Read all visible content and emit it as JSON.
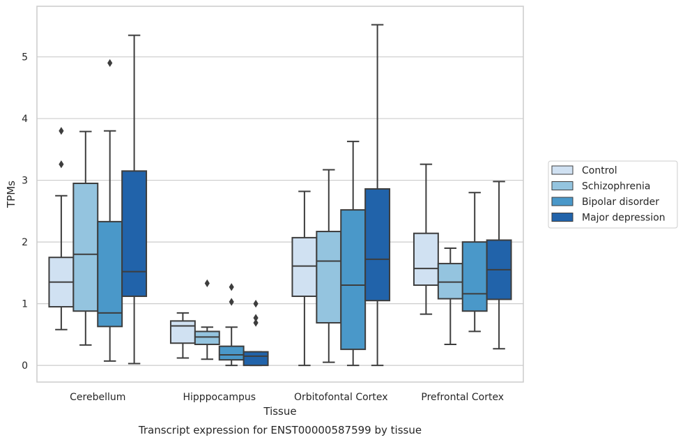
{
  "chart_data": {
    "type": "box",
    "caption": "Transcript expression for ENST00000587599 by tissue",
    "xlabel": "Tissue",
    "ylabel": "TPMs",
    "ylim": [
      -0.27,
      5.82
    ],
    "yticks": [
      0,
      1,
      2,
      3,
      4,
      5
    ],
    "grid": "horizontal",
    "legend_position": "right",
    "categories": [
      "Cerebellum",
      "Hipppocampus",
      "Orbitofontal Cortex",
      "Prefrontal Cortex"
    ],
    "series": [
      {
        "name": "Control",
        "color": "#d0e1f2",
        "boxes": [
          {
            "whislo": 0.58,
            "q1": 0.95,
            "med": 1.35,
            "q3": 1.75,
            "whishi": 2.75,
            "fliers": [
              3.26,
              3.8
            ]
          },
          {
            "whislo": 0.12,
            "q1": 0.36,
            "med": 0.64,
            "q3": 0.72,
            "whishi": 0.85,
            "fliers": []
          },
          {
            "whislo": 0.0,
            "q1": 1.12,
            "med": 1.61,
            "q3": 2.07,
            "whishi": 2.82,
            "fliers": []
          },
          {
            "whislo": 0.83,
            "q1": 1.3,
            "med": 1.57,
            "q3": 2.14,
            "whishi": 3.26,
            "fliers": []
          }
        ]
      },
      {
        "name": "Schizophrenia",
        "color": "#94c4df",
        "boxes": [
          {
            "whislo": 0.33,
            "q1": 0.88,
            "med": 1.8,
            "q3": 2.95,
            "whishi": 3.79,
            "fliers": []
          },
          {
            "whislo": 0.1,
            "q1": 0.34,
            "med": 0.46,
            "q3": 0.55,
            "whishi": 0.62,
            "fliers": [
              1.33
            ]
          },
          {
            "whislo": 0.05,
            "q1": 0.69,
            "med": 1.69,
            "q3": 2.17,
            "whishi": 3.17,
            "fliers": []
          },
          {
            "whislo": 0.34,
            "q1": 1.08,
            "med": 1.35,
            "q3": 1.65,
            "whishi": 1.9,
            "fliers": []
          }
        ]
      },
      {
        "name": "Bipolar disorder",
        "color": "#4a98c9",
        "boxes": [
          {
            "whislo": 0.07,
            "q1": 0.63,
            "med": 0.85,
            "q3": 2.33,
            "whishi": 3.8,
            "fliers": [
              4.9
            ]
          },
          {
            "whislo": 0.0,
            "q1": 0.09,
            "med": 0.17,
            "q3": 0.31,
            "whishi": 0.62,
            "fliers": [
              1.03,
              1.27
            ]
          },
          {
            "whislo": 0.0,
            "q1": 0.26,
            "med": 1.3,
            "q3": 2.52,
            "whishi": 3.63,
            "fliers": []
          },
          {
            "whislo": 0.55,
            "q1": 0.88,
            "med": 1.16,
            "q3": 2.0,
            "whishi": 2.8,
            "fliers": []
          }
        ]
      },
      {
        "name": "Major depression",
        "color": "#2163aa",
        "boxes": [
          {
            "whislo": 0.03,
            "q1": 1.12,
            "med": 1.52,
            "q3": 3.15,
            "whishi": 5.35,
            "fliers": []
          },
          {
            "whislo": 0.0,
            "q1": 0.0,
            "med": 0.15,
            "q3": 0.22,
            "whishi": 0.22,
            "fliers": [
              0.69,
              0.77,
              1.0
            ]
          },
          {
            "whislo": 0.0,
            "q1": 1.05,
            "med": 1.72,
            "q3": 2.86,
            "whishi": 5.52,
            "fliers": []
          },
          {
            "whislo": 0.27,
            "q1": 1.07,
            "med": 1.55,
            "q3": 2.03,
            "whishi": 2.98,
            "fliers": []
          }
        ]
      }
    ]
  }
}
